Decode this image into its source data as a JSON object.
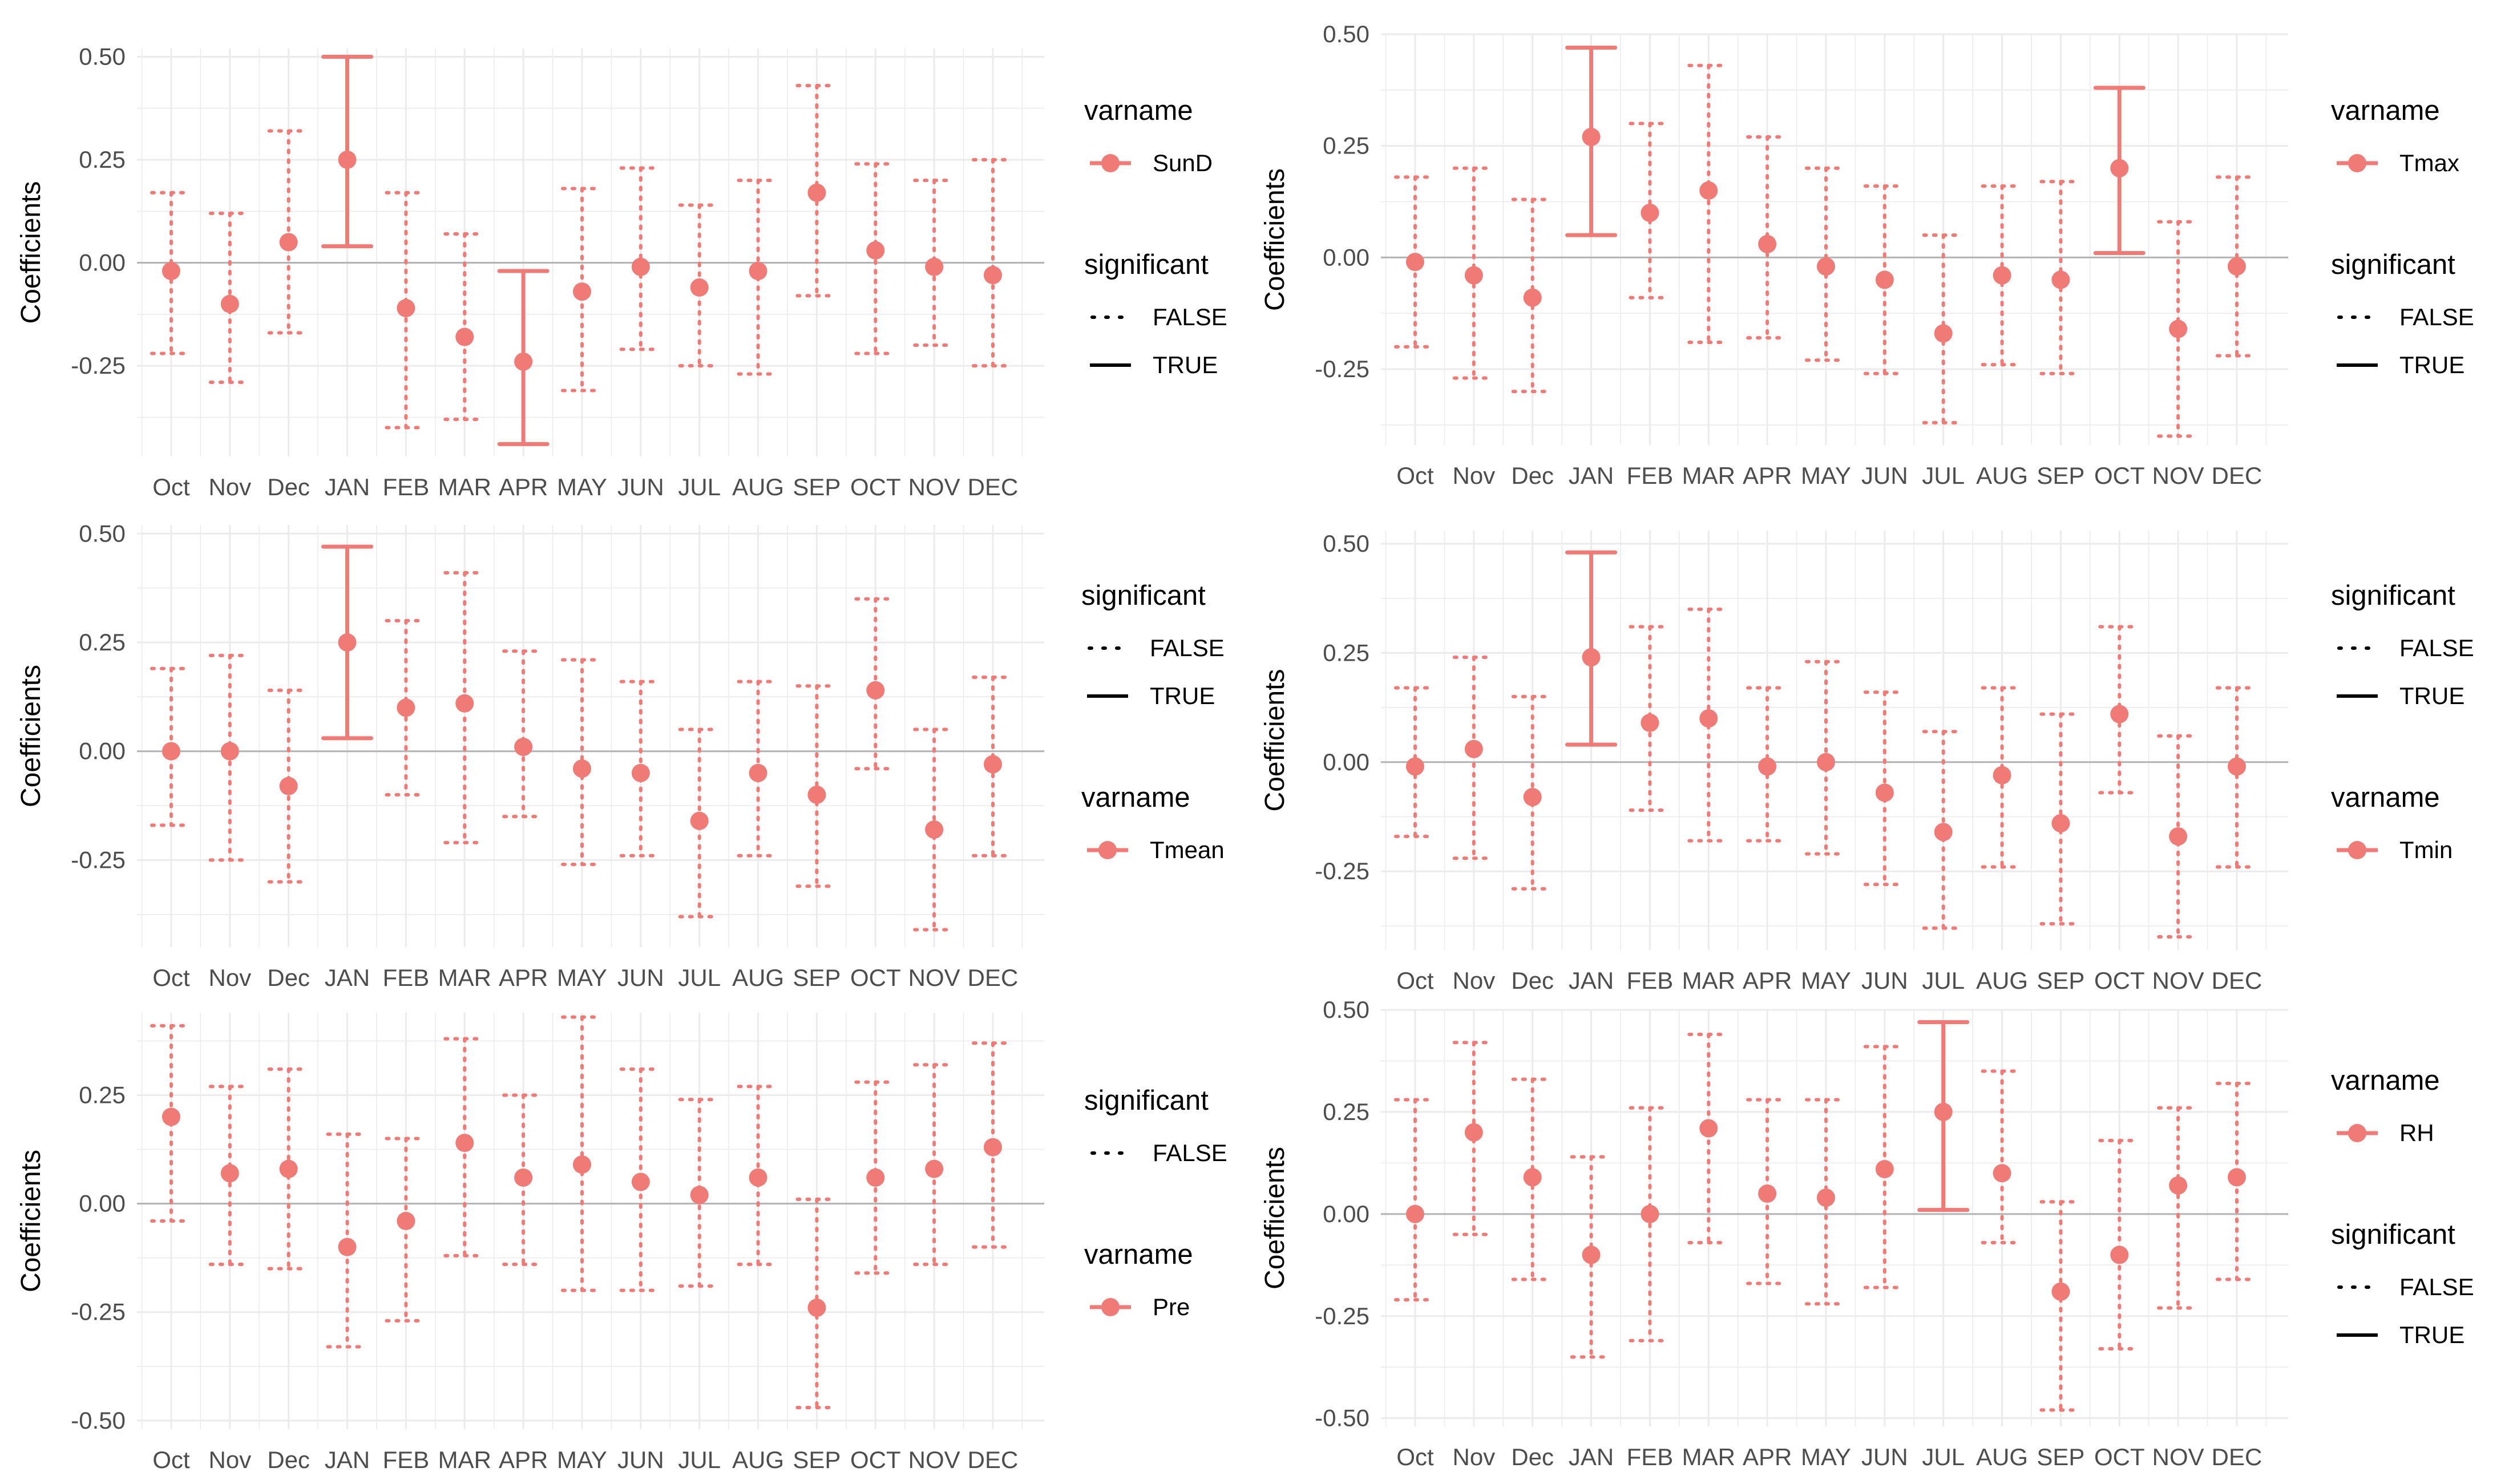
{
  "colors": {
    "series": "#f07a75",
    "grid": "#ebebeb",
    "zero": "#b3b3b3",
    "tick": "#4d4d4d"
  },
  "chart_data": [
    {
      "type": "scatter",
      "title": "",
      "xlabel": "",
      "ylabel": "Coefficients",
      "ylim": [
        -0.47,
        0.52
      ],
      "yticks": [
        -0.25,
        0.0,
        0.25,
        0.5
      ],
      "ytick_labels": [
        "-0.25",
        "0.00",
        "0.25",
        "0.50"
      ],
      "categories": [
        "Oct",
        "Nov",
        "Dec",
        "JAN",
        "FEB",
        "MAR",
        "APR",
        "MAY",
        "JUN",
        "JUL",
        "AUG",
        "SEP",
        "OCT",
        "NOV",
        "DEC"
      ],
      "series": [
        {
          "name": "SunD",
          "values": [
            -0.02,
            -0.1,
            0.05,
            0.25,
            -0.11,
            -0.18,
            -0.24,
            -0.07,
            -0.01,
            -0.06,
            -0.02,
            0.17,
            0.03,
            -0.01,
            -0.03
          ],
          "lower": [
            -0.22,
            -0.29,
            -0.17,
            0.04,
            -0.4,
            -0.38,
            -0.44,
            -0.31,
            -0.21,
            -0.25,
            -0.27,
            -0.08,
            -0.22,
            -0.2,
            -0.25
          ],
          "upper": [
            0.17,
            0.12,
            0.32,
            0.5,
            0.17,
            0.07,
            -0.02,
            0.18,
            0.23,
            0.14,
            0.2,
            0.43,
            0.24,
            0.2,
            0.25
          ],
          "significant": [
            false,
            false,
            false,
            true,
            false,
            false,
            true,
            false,
            false,
            false,
            false,
            false,
            false,
            false,
            false
          ]
        }
      ],
      "legend": [
        {
          "title": "varname",
          "entries": [
            {
              "kind": "point",
              "label": "SunD"
            }
          ]
        },
        {
          "title": "significant",
          "entries": [
            {
              "kind": "dotted",
              "label": "FALSE"
            },
            {
              "kind": "solid",
              "label": "TRUE"
            }
          ]
        }
      ]
    },
    {
      "type": "scatter",
      "title": "",
      "xlabel": "",
      "ylabel": "Coefficients",
      "ylim": [
        -0.42,
        0.5
      ],
      "yticks": [
        -0.25,
        0.0,
        0.25,
        0.5
      ],
      "ytick_labels": [
        "-0.25",
        "0.00",
        "0.25",
        "0.50"
      ],
      "categories": [
        "Oct",
        "Nov",
        "Dec",
        "JAN",
        "FEB",
        "MAR",
        "APR",
        "MAY",
        "JUN",
        "JUL",
        "AUG",
        "SEP",
        "OCT",
        "NOV",
        "DEC"
      ],
      "series": [
        {
          "name": "Tmax",
          "values": [
            -0.01,
            -0.04,
            -0.09,
            0.27,
            0.1,
            0.15,
            0.03,
            -0.02,
            -0.05,
            -0.17,
            -0.04,
            -0.05,
            0.2,
            -0.16,
            -0.02
          ],
          "lower": [
            -0.2,
            -0.27,
            -0.3,
            0.05,
            -0.09,
            -0.19,
            -0.18,
            -0.23,
            -0.26,
            -0.37,
            -0.24,
            -0.26,
            0.01,
            -0.4,
            -0.22
          ],
          "upper": [
            0.18,
            0.2,
            0.13,
            0.47,
            0.3,
            0.43,
            0.27,
            0.2,
            0.16,
            0.05,
            0.16,
            0.17,
            0.38,
            0.08,
            0.18
          ],
          "significant": [
            false,
            false,
            false,
            true,
            false,
            false,
            false,
            false,
            false,
            false,
            false,
            false,
            true,
            false,
            false
          ]
        }
      ],
      "legend": [
        {
          "title": "varname",
          "entries": [
            {
              "kind": "point",
              "label": "Tmax"
            }
          ]
        },
        {
          "title": "significant",
          "entries": [
            {
              "kind": "dotted",
              "label": "FALSE"
            },
            {
              "kind": "solid",
              "label": "TRUE"
            }
          ]
        }
      ]
    },
    {
      "type": "scatter",
      "title": "",
      "xlabel": "",
      "ylabel": "Coefficients",
      "ylim": [
        -0.45,
        0.52
      ],
      "yticks": [
        -0.25,
        0.0,
        0.25,
        0.5
      ],
      "ytick_labels": [
        "-0.25",
        "0.00",
        "0.25",
        "0.50"
      ],
      "categories": [
        "Oct",
        "Nov",
        "Dec",
        "JAN",
        "FEB",
        "MAR",
        "APR",
        "MAY",
        "JUN",
        "JUL",
        "AUG",
        "SEP",
        "OCT",
        "NOV",
        "DEC"
      ],
      "series": [
        {
          "name": "Tmean",
          "values": [
            0.0,
            0.0,
            -0.08,
            0.25,
            0.1,
            0.11,
            0.01,
            -0.04,
            -0.05,
            -0.16,
            -0.05,
            -0.1,
            0.14,
            -0.18,
            -0.03
          ],
          "lower": [
            -0.17,
            -0.25,
            -0.3,
            0.03,
            -0.1,
            -0.21,
            -0.15,
            -0.26,
            -0.24,
            -0.38,
            -0.24,
            -0.31,
            -0.04,
            -0.41,
            -0.24
          ],
          "upper": [
            0.19,
            0.22,
            0.14,
            0.47,
            0.3,
            0.41,
            0.23,
            0.21,
            0.16,
            0.05,
            0.16,
            0.15,
            0.35,
            0.05,
            0.17
          ],
          "significant": [
            false,
            false,
            false,
            true,
            false,
            false,
            false,
            false,
            false,
            false,
            false,
            false,
            false,
            false,
            false
          ]
        }
      ],
      "legend": [
        {
          "title": "significant",
          "entries": [
            {
              "kind": "dotted",
              "label": "FALSE"
            },
            {
              "kind": "solid",
              "label": "TRUE"
            }
          ]
        },
        {
          "title": "varname",
          "entries": [
            {
              "kind": "point",
              "label": "Tmean"
            }
          ]
        }
      ]
    },
    {
      "type": "scatter",
      "title": "",
      "xlabel": "",
      "ylabel": "Coefficients",
      "ylim": [
        -0.43,
        0.53
      ],
      "yticks": [
        -0.25,
        0.0,
        0.25,
        0.5
      ],
      "ytick_labels": [
        "-0.25",
        "0.00",
        "0.25",
        "0.50"
      ],
      "categories": [
        "Oct",
        "Nov",
        "Dec",
        "JAN",
        "FEB",
        "MAR",
        "APR",
        "MAY",
        "JUN",
        "JUL",
        "AUG",
        "SEP",
        "OCT",
        "NOV",
        "DEC"
      ],
      "series": [
        {
          "name": "Tmin",
          "values": [
            -0.01,
            0.03,
            -0.08,
            0.24,
            0.09,
            0.1,
            -0.01,
            0.0,
            -0.07,
            -0.16,
            -0.03,
            -0.14,
            0.11,
            -0.17,
            -0.01
          ],
          "lower": [
            -0.17,
            -0.22,
            -0.29,
            0.04,
            -0.11,
            -0.18,
            -0.18,
            -0.21,
            -0.28,
            -0.38,
            -0.24,
            -0.37,
            -0.07,
            -0.4,
            -0.24
          ],
          "upper": [
            0.17,
            0.24,
            0.15,
            0.48,
            0.31,
            0.35,
            0.17,
            0.23,
            0.16,
            0.07,
            0.17,
            0.11,
            0.31,
            0.06,
            0.17
          ],
          "significant": [
            false,
            false,
            false,
            true,
            false,
            false,
            false,
            false,
            false,
            false,
            false,
            false,
            false,
            false,
            false
          ]
        }
      ],
      "legend": [
        {
          "title": "significant",
          "entries": [
            {
              "kind": "dotted",
              "label": "FALSE"
            },
            {
              "kind": "solid",
              "label": "TRUE"
            }
          ]
        },
        {
          "title": "varname",
          "entries": [
            {
              "kind": "point",
              "label": "Tmin"
            }
          ]
        }
      ]
    },
    {
      "type": "scatter",
      "title": "",
      "xlabel": "",
      "ylabel": "Coefficients",
      "ylim": [
        -0.52,
        0.44
      ],
      "yticks": [
        -0.5,
        -0.25,
        0.0,
        0.25
      ],
      "ytick_labels": [
        "-0.50",
        "-0.25",
        "0.00",
        "0.25"
      ],
      "categories": [
        "Oct",
        "Nov",
        "Dec",
        "JAN",
        "FEB",
        "MAR",
        "APR",
        "MAY",
        "JUN",
        "JUL",
        "AUG",
        "SEP",
        "OCT",
        "NOV",
        "DEC"
      ],
      "series": [
        {
          "name": "Pre",
          "values": [
            0.2,
            0.07,
            0.08,
            -0.1,
            -0.04,
            0.14,
            0.06,
            0.09,
            0.05,
            0.02,
            0.06,
            -0.24,
            0.06,
            0.08,
            0.13
          ],
          "lower": [
            -0.04,
            -0.14,
            -0.15,
            -0.33,
            -0.27,
            -0.12,
            -0.14,
            -0.2,
            -0.2,
            -0.19,
            -0.14,
            -0.47,
            -0.16,
            -0.14,
            -0.1
          ],
          "upper": [
            0.41,
            0.27,
            0.31,
            0.16,
            0.15,
            0.38,
            0.25,
            0.43,
            0.31,
            0.24,
            0.27,
            0.01,
            0.28,
            0.32,
            0.37
          ],
          "significant": [
            false,
            false,
            false,
            false,
            false,
            false,
            false,
            false,
            false,
            false,
            false,
            false,
            false,
            false,
            false
          ]
        }
      ],
      "legend": [
        {
          "title": "significant",
          "entries": [
            {
              "kind": "dotted",
              "label": "FALSE"
            }
          ]
        },
        {
          "title": "varname",
          "entries": [
            {
              "kind": "point",
              "label": "Pre"
            }
          ]
        }
      ]
    },
    {
      "type": "scatter",
      "title": "",
      "xlabel": "",
      "ylabel": "Coefficients",
      "ylim": [
        -0.52,
        0.5
      ],
      "yticks": [
        -0.5,
        -0.25,
        0.0,
        0.25,
        0.5
      ],
      "ytick_labels": [
        "-0.50",
        "-0.25",
        "0.00",
        "0.25",
        "0.50"
      ],
      "categories": [
        "Oct",
        "Nov",
        "Dec",
        "JAN",
        "FEB",
        "MAR",
        "APR",
        "MAY",
        "JUN",
        "JUL",
        "AUG",
        "SEP",
        "OCT",
        "NOV",
        "DEC"
      ],
      "series": [
        {
          "name": "RH",
          "values": [
            0.0,
            0.2,
            0.09,
            -0.1,
            0.0,
            0.21,
            0.05,
            0.04,
            0.11,
            0.25,
            0.1,
            -0.19,
            -0.1,
            0.07,
            0.09
          ],
          "lower": [
            -0.21,
            -0.05,
            -0.16,
            -0.35,
            -0.31,
            -0.07,
            -0.17,
            -0.22,
            -0.18,
            0.01,
            -0.07,
            -0.48,
            -0.33,
            -0.23,
            -0.16
          ],
          "upper": [
            0.28,
            0.42,
            0.33,
            0.14,
            0.26,
            0.44,
            0.28,
            0.28,
            0.41,
            0.47,
            0.35,
            0.03,
            0.18,
            0.26,
            0.32
          ],
          "significant": [
            false,
            false,
            false,
            false,
            false,
            false,
            false,
            false,
            false,
            true,
            false,
            false,
            false,
            false,
            false
          ]
        }
      ],
      "legend": [
        {
          "title": "varname",
          "entries": [
            {
              "kind": "point",
              "label": "RH"
            }
          ]
        },
        {
          "title": "significant",
          "entries": [
            {
              "kind": "dotted",
              "label": "FALSE"
            },
            {
              "kind": "solid",
              "label": "TRUE"
            }
          ]
        }
      ]
    }
  ]
}
